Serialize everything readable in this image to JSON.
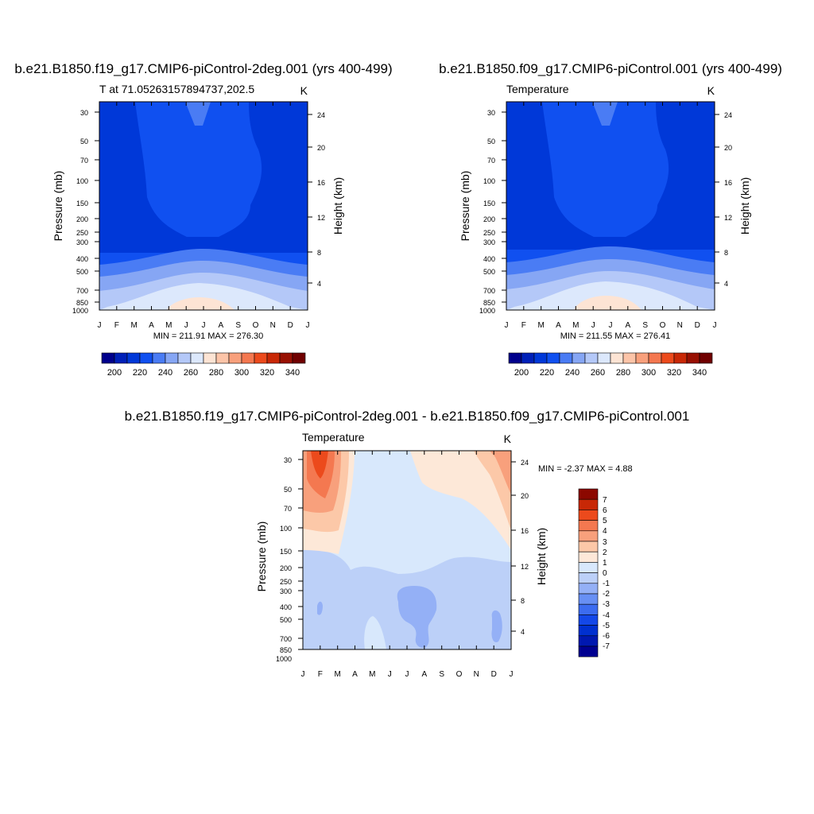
{
  "chart_data": [
    {
      "type": "heatmap",
      "title": "b.e21.B1850.f19_g17.CMIP6-piControl-2deg.001 (yrs 400-499)",
      "subtitle_left": "T at 71.05263157894737,202.5",
      "units": "K",
      "ylabel": "Pressure (mb)",
      "y2label": "Height (km)",
      "x_ticks": [
        "J",
        "F",
        "M",
        "A",
        "M",
        "J",
        "J",
        "A",
        "S",
        "O",
        "N",
        "D",
        "J"
      ],
      "y_ticks": [
        "30",
        "50",
        "70",
        "100",
        "150",
        "200",
        "250",
        "300",
        "400",
        "500",
        "700",
        "850",
        "1000"
      ],
      "y2_ticks": [
        "24",
        "20",
        "16",
        "12",
        "8",
        "4"
      ],
      "stats": "MIN = 211.91 MAX = 276.30",
      "colorbar_labels": [
        "200",
        "220",
        "240",
        "260",
        "280",
        "300",
        "320",
        "340"
      ]
    },
    {
      "type": "heatmap",
      "title": "b.e21.B1850.f09_g17.CMIP6-piControl.001 (yrs 400-499)",
      "subtitle_left": "Temperature",
      "units": "K",
      "ylabel": "Pressure (mb)",
      "y2label": "Height (km)",
      "x_ticks": [
        "J",
        "F",
        "M",
        "A",
        "M",
        "J",
        "J",
        "A",
        "S",
        "O",
        "N",
        "D",
        "J"
      ],
      "y_ticks": [
        "30",
        "50",
        "70",
        "100",
        "150",
        "200",
        "250",
        "300",
        "400",
        "500",
        "700",
        "850",
        "1000"
      ],
      "y2_ticks": [
        "24",
        "20",
        "16",
        "12",
        "8",
        "4"
      ],
      "stats": "MIN = 211.55 MAX = 276.41",
      "colorbar_labels": [
        "200",
        "220",
        "240",
        "260",
        "280",
        "300",
        "320",
        "340"
      ]
    },
    {
      "type": "heatmap",
      "title": "b.e21.B1850.f19_g17.CMIP6-piControl-2deg.001 - b.e21.B1850.f09_g17.CMIP6-piControl.001",
      "subtitle_left": "Temperature",
      "units": "K",
      "ylabel": "Pressure (mb)",
      "y2label": "Height (km)",
      "x_ticks": [
        "J",
        "F",
        "M",
        "A",
        "M",
        "J",
        "J",
        "A",
        "S",
        "O",
        "N",
        "D",
        "J"
      ],
      "y_ticks": [
        "30",
        "50",
        "70",
        "100",
        "150",
        "200",
        "250",
        "300",
        "400",
        "500",
        "700",
        "850",
        "1000"
      ],
      "y2_ticks": [
        "24",
        "20",
        "16",
        "12",
        "8",
        "4"
      ],
      "stats": "MIN =  -2.37 MAX =   4.88",
      "colorbar_labels": [
        "7",
        "6",
        "5",
        "4",
        "3",
        "2",
        "1",
        "0",
        "-1",
        "-2",
        "-3",
        "-4",
        "-5",
        "-6",
        "-7"
      ]
    }
  ],
  "colors": {
    "abs_scale": [
      "#00008c",
      "#0020b8",
      "#0038d8",
      "#1050f0",
      "#4a7cf4",
      "#86a6f4",
      "#b4c8f8",
      "#dce8fc",
      "#fde4d4",
      "#fcc4a8",
      "#f8a07c",
      "#f47850",
      "#ec4a1c",
      "#c82806",
      "#981002",
      "#700000"
    ],
    "diff_scale": [
      "#000090",
      "#0018b0",
      "#0030d0",
      "#1448e8",
      "#3c6cf0",
      "#6890f4",
      "#94b0f6",
      "#bcd0f8",
      "#d8e8fc",
      "#fde8d8",
      "#fcc8a8",
      "#f8a07c",
      "#f47850",
      "#ec4a1c",
      "#c82806",
      "#8c0800"
    ]
  }
}
